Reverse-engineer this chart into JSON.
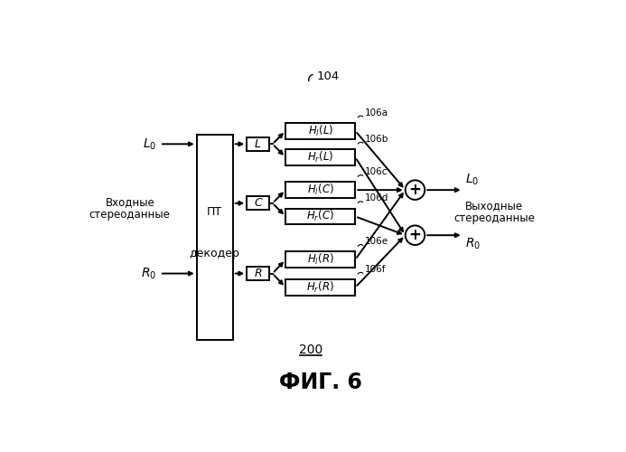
{
  "title": "ФИГ. 6",
  "bg_color": "#ffffff",
  "label_104": "104",
  "label_200": "200",
  "decoder_label1": "ПТ",
  "decoder_label2": "декодер",
  "input_label1": "Входные",
  "input_label2": "стереоданные",
  "output_label1": "Выходные",
  "output_label2": "стереоданные",
  "filter_refs": [
    "106a",
    "106b",
    "106c",
    "106d",
    "106e",
    "106f"
  ],
  "filter_labels": [
    "H_l(L)",
    "H_r(L)",
    "H_l(C)",
    "H_r(C)",
    "H_l(R)",
    "H_r(R)"
  ]
}
